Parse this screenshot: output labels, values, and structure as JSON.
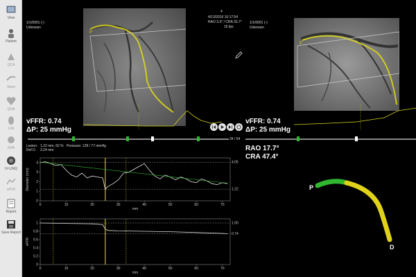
{
  "sidebar": {
    "items": [
      {
        "label": "View",
        "icon": "eye-icon",
        "enabled": true
      },
      {
        "label": "Patient",
        "icon": "patient-icon",
        "enabled": true
      },
      {
        "label": "QCA",
        "icon": "qca-icon",
        "enabled": false
      },
      {
        "label": "Stent",
        "icon": "stent-icon",
        "enabled": false
      },
      {
        "label": "QHA",
        "icon": "heart-icon",
        "enabled": false
      },
      {
        "label": "LVA",
        "icon": "ventricle-icon",
        "enabled": false
      },
      {
        "label": "RVA",
        "icon": "ventricle-icon",
        "enabled": false
      },
      {
        "label": "IV-LINQ",
        "icon": "ivlinq-icon",
        "enabled": true
      },
      {
        "label": "vFFR",
        "icon": "vffr-icon",
        "enabled": false
      },
      {
        "label": "Report",
        "icon": "report-icon",
        "enabled": true
      },
      {
        "label": "Save Report",
        "icon": "save-report-icon",
        "enabled": true
      }
    ]
  },
  "left_view": {
    "series": "1/1/0001 (-)",
    "patient": "Unknown",
    "frame_index": "4",
    "datetime": "4/13/2016 10:17:54",
    "angles": "RAO 3.3° / CRA 33.7°",
    "fps": "15 fps",
    "vffr": "vFFR: 0.74",
    "dp": "ΔP: 25 mmHg",
    "frame_counter": "34 / 54",
    "marker_p": "P"
  },
  "right_view": {
    "series": "1/1/0001 (-)",
    "patient": "Unknown",
    "vffr": "vFFR: 0.74",
    "dp": "ΔP: 25 mmHg",
    "rao": "RAO 17.7°",
    "cra": "CRA 47.4°",
    "marker_p": "P"
  },
  "lesion_info": {
    "lesion": "Lesion:",
    "lesion_val": "1.22 mm, 62 %",
    "pressure": "Pressure: 128 / 77 mmHg",
    "ref": "Ref D.",
    "ref_val": "3.24 mm"
  },
  "chart_data": [
    {
      "type": "line",
      "title": "",
      "ylabel": "Diameter (mm)",
      "xlabel": "mm",
      "ylim": [
        0,
        4.5
      ],
      "xlim": [
        0,
        73
      ],
      "x_ticks": [
        0,
        10,
        20,
        30,
        40,
        50,
        60,
        70
      ],
      "y_ticks": [
        0,
        1,
        2,
        3,
        4
      ],
      "ref_lines": [
        4.05,
        1.22
      ],
      "ref_labels": [
        "4.05",
        "1.22"
      ],
      "vertical_markers": [
        5,
        25,
        33
      ],
      "series": [
        {
          "x": [
            0,
            2,
            4,
            6,
            8,
            10,
            12,
            14,
            16,
            18,
            20,
            22,
            24,
            25,
            26,
            28,
            30,
            32,
            34,
            36,
            38,
            40,
            42,
            44,
            46,
            48,
            50,
            52,
            54,
            56,
            58,
            60,
            62,
            64,
            66,
            68,
            70,
            72
          ],
          "values": [
            4.0,
            4.1,
            3.9,
            3.7,
            3.8,
            3.2,
            2.7,
            2.5,
            2.9,
            2.4,
            2.6,
            2.5,
            2.4,
            1.22,
            1.5,
            1.8,
            2.2,
            2.9,
            3.0,
            3.3,
            3.6,
            3.9,
            3.2,
            2.6,
            2.3,
            2.7,
            2.5,
            2.2,
            2.5,
            2.3,
            2.0,
            1.9,
            2.3,
            2.1,
            1.8,
            1.7,
            1.9,
            1.8
          ]
        },
        {
          "x": [
            0,
            72
          ],
          "values": [
            4.05,
            1.85
          ]
        }
      ]
    },
    {
      "type": "line",
      "title": "",
      "ylabel": "vFFR",
      "xlabel": "mm",
      "ylim": [
        0,
        1.1
      ],
      "xlim": [
        0,
        73
      ],
      "x_ticks": [
        0,
        10,
        20,
        30,
        40,
        50,
        60,
        70
      ],
      "y_ticks": [
        0,
        0.2,
        0.4,
        0.6,
        0.8,
        1
      ],
      "ref_lines": [
        1.0,
        0.74
      ],
      "ref_labels": [
        "1.00",
        "0.74"
      ],
      "vertical_markers": [
        5,
        25,
        33
      ],
      "series": [
        {
          "x": [
            0,
            10,
            20,
            24,
            25,
            26,
            30,
            40,
            50,
            60,
            70,
            72
          ],
          "values": [
            1.0,
            0.99,
            0.98,
            0.96,
            0.85,
            0.82,
            0.81,
            0.8,
            0.79,
            0.77,
            0.75,
            0.74
          ]
        }
      ]
    }
  ],
  "vessel_labels": {
    "proximal": "P",
    "distal": "D"
  },
  "colors": {
    "vessel_green": "#2fb82f",
    "vessel_yellow": "#e0d21a",
    "graph_line": "#e6e6e6",
    "marker": "#d8d41c"
  }
}
